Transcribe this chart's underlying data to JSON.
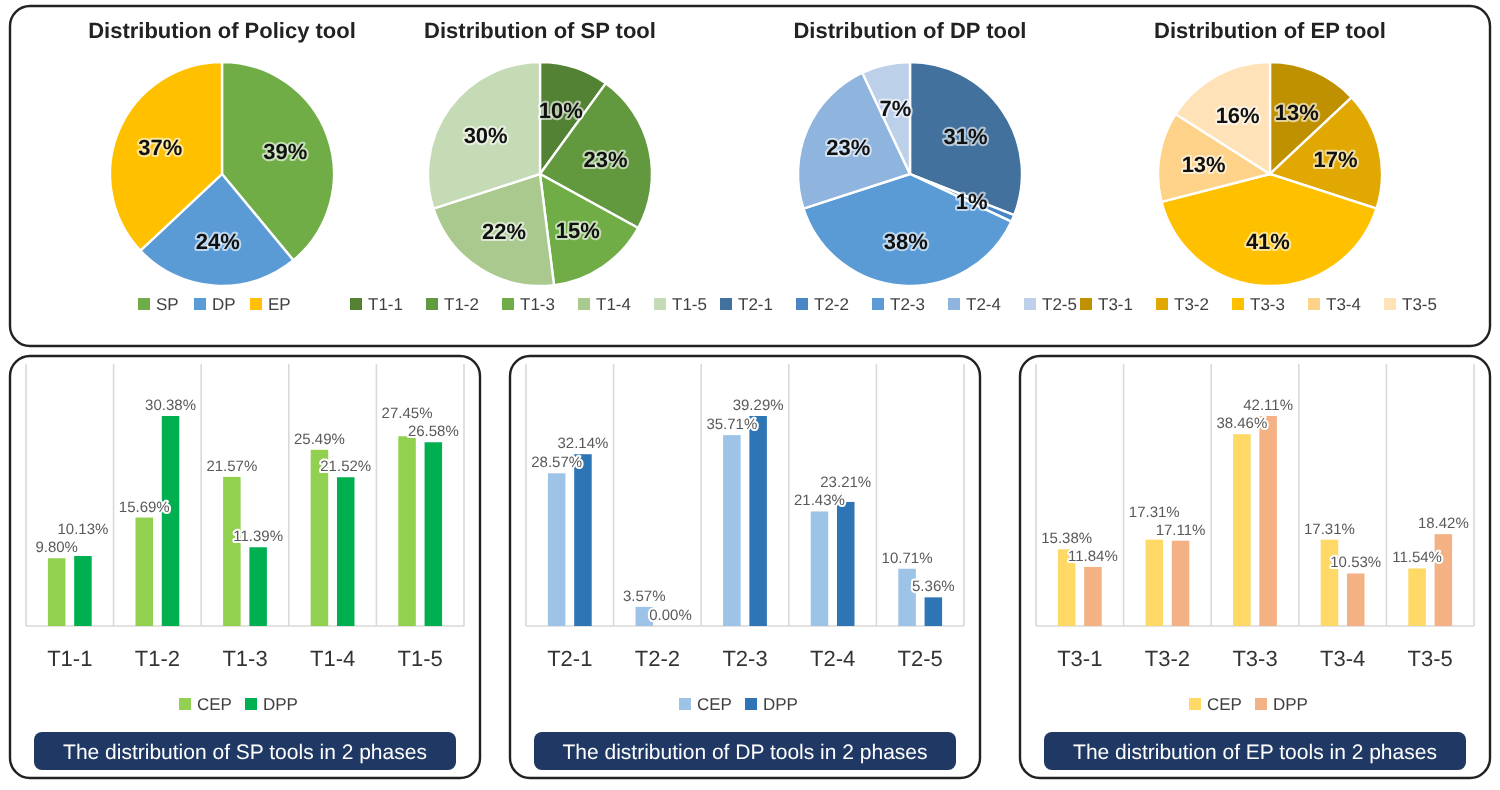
{
  "chart_data": [
    {
      "type": "pie",
      "title": "Distribution of Policy tool",
      "categories": [
        "SP",
        "DP",
        "EP"
      ],
      "values": [
        39,
        24,
        37
      ],
      "colors": [
        "#70ad47",
        "#5b9bd5",
        "#ffc000"
      ],
      "value_labels": [
        "39%",
        "24%",
        "37%"
      ],
      "legend": "bottom"
    },
    {
      "type": "pie",
      "title": "Distribution of SP tool",
      "categories": [
        "T1-1",
        "T1-2",
        "T1-3",
        "T1-4",
        "T1-5"
      ],
      "values": [
        10,
        23,
        15,
        22,
        30
      ],
      "colors": [
        "#548235",
        "#62993e",
        "#70ad47",
        "#a9c98f",
        "#c5dbb5"
      ],
      "value_labels": [
        "10%",
        "23%",
        "15%",
        "22%",
        "30%"
      ],
      "legend": "bottom"
    },
    {
      "type": "pie",
      "title": "Distribution of DP tool",
      "categories": [
        "T2-1",
        "T2-2",
        "T2-3",
        "T2-4",
        "T2-5"
      ],
      "values": [
        31,
        1,
        38,
        23,
        7
      ],
      "colors": [
        "#41719c",
        "#4a86c5",
        "#5b9bd5",
        "#8fb4de",
        "#bdd0ea"
      ],
      "value_labels": [
        "31%",
        "1%",
        "38%",
        "23%",
        "7%"
      ],
      "legend": "bottom"
    },
    {
      "type": "pie",
      "title": "Distribution of EP tool",
      "categories": [
        "T3-1",
        "T3-2",
        "T3-3",
        "T3-4",
        "T3-5"
      ],
      "values": [
        13,
        17,
        41,
        13,
        16
      ],
      "colors": [
        "#bf9000",
        "#e0a800",
        "#ffc000",
        "#ffd28a",
        "#ffe2b8"
      ],
      "value_labels": [
        "13%",
        "17%",
        "41%",
        "13%",
        "16%"
      ],
      "legend": "bottom"
    },
    {
      "type": "bar",
      "title": "The distribution of SP tools in 2 phases",
      "categories": [
        "T1-1",
        "T1-2",
        "T1-3",
        "T1-4",
        "T1-5"
      ],
      "tick_labels": "x",
      "grid": "x",
      "legend": "bottom",
      "series": [
        {
          "name": "CEP",
          "color": "#92d050",
          "values": [
            9.8,
            15.69,
            21.57,
            25.49,
            27.45
          ],
          "value_labels": [
            "9.80%",
            "15.69%",
            "21.57%",
            "25.49%",
            "27.45%"
          ]
        },
        {
          "name": "DPP",
          "color": "#00b050",
          "values": [
            10.13,
            30.38,
            11.39,
            21.52,
            26.58
          ],
          "value_labels": [
            "10.13%",
            "30.38%",
            "11.39%",
            "21.52%",
            "26.58%"
          ]
        }
      ]
    },
    {
      "type": "bar",
      "title": "The distribution of DP tools in 2 phases",
      "categories": [
        "T2-1",
        "T2-2",
        "T2-3",
        "T2-4",
        "T2-5"
      ],
      "tick_labels": "x",
      "grid": "x",
      "legend": "bottom",
      "series": [
        {
          "name": "CEP",
          "color": "#9dc3e6",
          "values": [
            28.57,
            3.57,
            35.71,
            21.43,
            10.71
          ],
          "value_labels": [
            "28.57%",
            "3.57%",
            "35.71%",
            "21.43%",
            "10.71%"
          ]
        },
        {
          "name": "DPP",
          "color": "#2e75b6",
          "values": [
            32.14,
            0.0,
            39.29,
            23.21,
            5.36
          ],
          "value_labels": [
            "32.14%",
            "0.00%",
            "39.29%",
            "23.21%",
            "5.36%"
          ]
        }
      ]
    },
    {
      "type": "bar",
      "title": "The distribution of EP tools in 2 phases",
      "categories": [
        "T3-1",
        "T3-2",
        "T3-3",
        "T3-4",
        "T3-5"
      ],
      "tick_labels": "x",
      "grid": "x",
      "legend": "bottom",
      "series": [
        {
          "name": "CEP",
          "color": "#ffd966",
          "values": [
            15.38,
            17.31,
            38.46,
            17.31,
            11.54
          ],
          "value_labels": [
            "15.38%",
            "17.31%",
            "38.46%",
            "17.31%",
            "11.54%"
          ]
        },
        {
          "name": "DPP",
          "color": "#f4b183",
          "values": [
            11.84,
            17.11,
            42.11,
            10.53,
            18.42
          ],
          "value_labels": [
            "11.84%",
            "17.11%",
            "42.11%",
            "10.53%",
            "18.42%"
          ]
        }
      ]
    }
  ]
}
